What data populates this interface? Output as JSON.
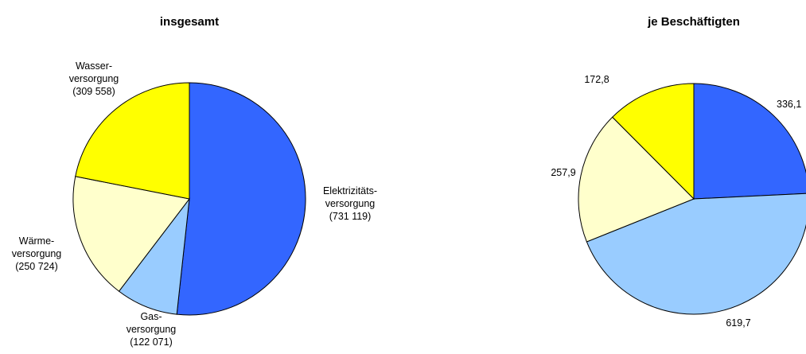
{
  "chart_data": [
    {
      "type": "pie",
      "title": "insgesamt",
      "slices": [
        {
          "label_lines": [
            "Elektrizitäts-",
            "versorgung",
            "(731 119)"
          ],
          "value": 731119,
          "color": "#3366ff"
        },
        {
          "label_lines": [
            "Gas-",
            "versorgung",
            "(122 071)"
          ],
          "value": 122071,
          "color": "#99ccff"
        },
        {
          "label_lines": [
            "Wärme-",
            "versorgung",
            "(250 724)"
          ],
          "value": 250724,
          "color": "#ffffcc"
        },
        {
          "label_lines": [
            "Wasser-",
            "versorgung",
            "(309 558)"
          ],
          "value": 309558,
          "color": "#ffff00"
        }
      ]
    },
    {
      "type": "pie",
      "title": "je Beschäftigten",
      "slices": [
        {
          "label": "336,1",
          "value": 336.1,
          "color": "#3366ff"
        },
        {
          "label": "619,7",
          "value": 619.7,
          "color": "#99ccff"
        },
        {
          "label": "257,9",
          "value": 257.9,
          "color": "#ffffcc"
        },
        {
          "label": "172,8",
          "value": 172.8,
          "color": "#ffff00"
        }
      ]
    }
  ]
}
